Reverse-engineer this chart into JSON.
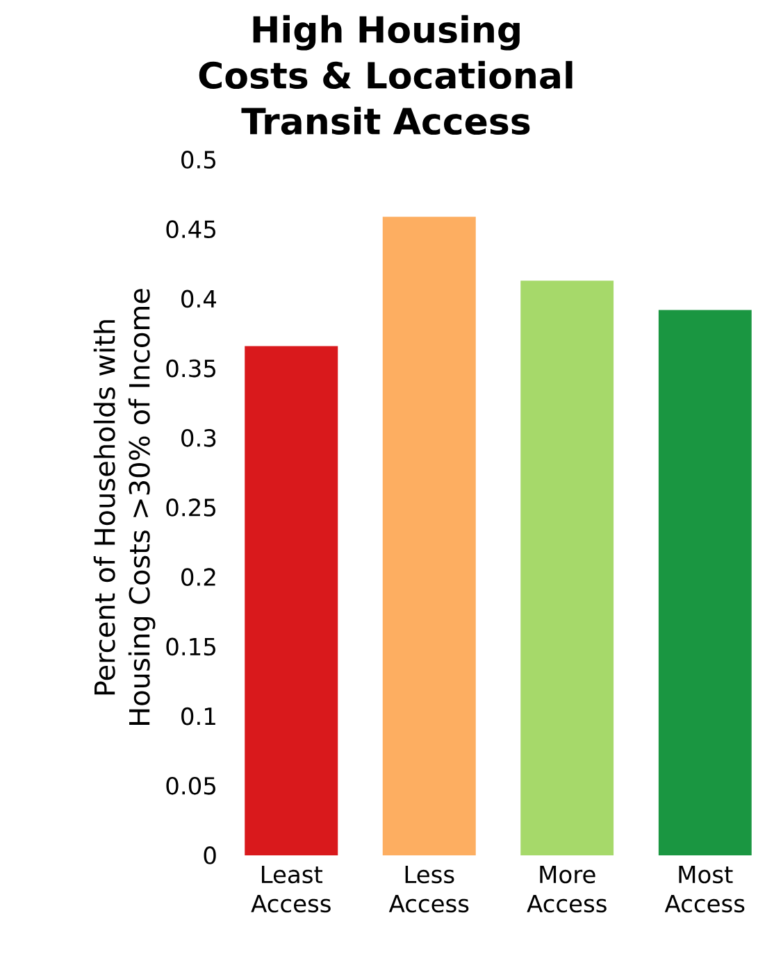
{
  "chart_data": {
    "type": "bar",
    "title": "High Housing Costs & Locational Transit Access",
    "ylabel": "Percent of Households with Housing Costs >30% of Income",
    "categories": [
      "Least Access",
      "Less Access",
      "More Access",
      "Most Access"
    ],
    "values": [
      0.366,
      0.459,
      0.413,
      0.392
    ],
    "colors": [
      "#d9191c",
      "#fdae61",
      "#a6d96a",
      "#1a9641"
    ],
    "ylim": [
      0,
      0.5
    ],
    "yticks": [
      0,
      0.05,
      0.1,
      0.15,
      0.2,
      0.25,
      0.3,
      0.35,
      0.4,
      0.45,
      0.5
    ]
  }
}
